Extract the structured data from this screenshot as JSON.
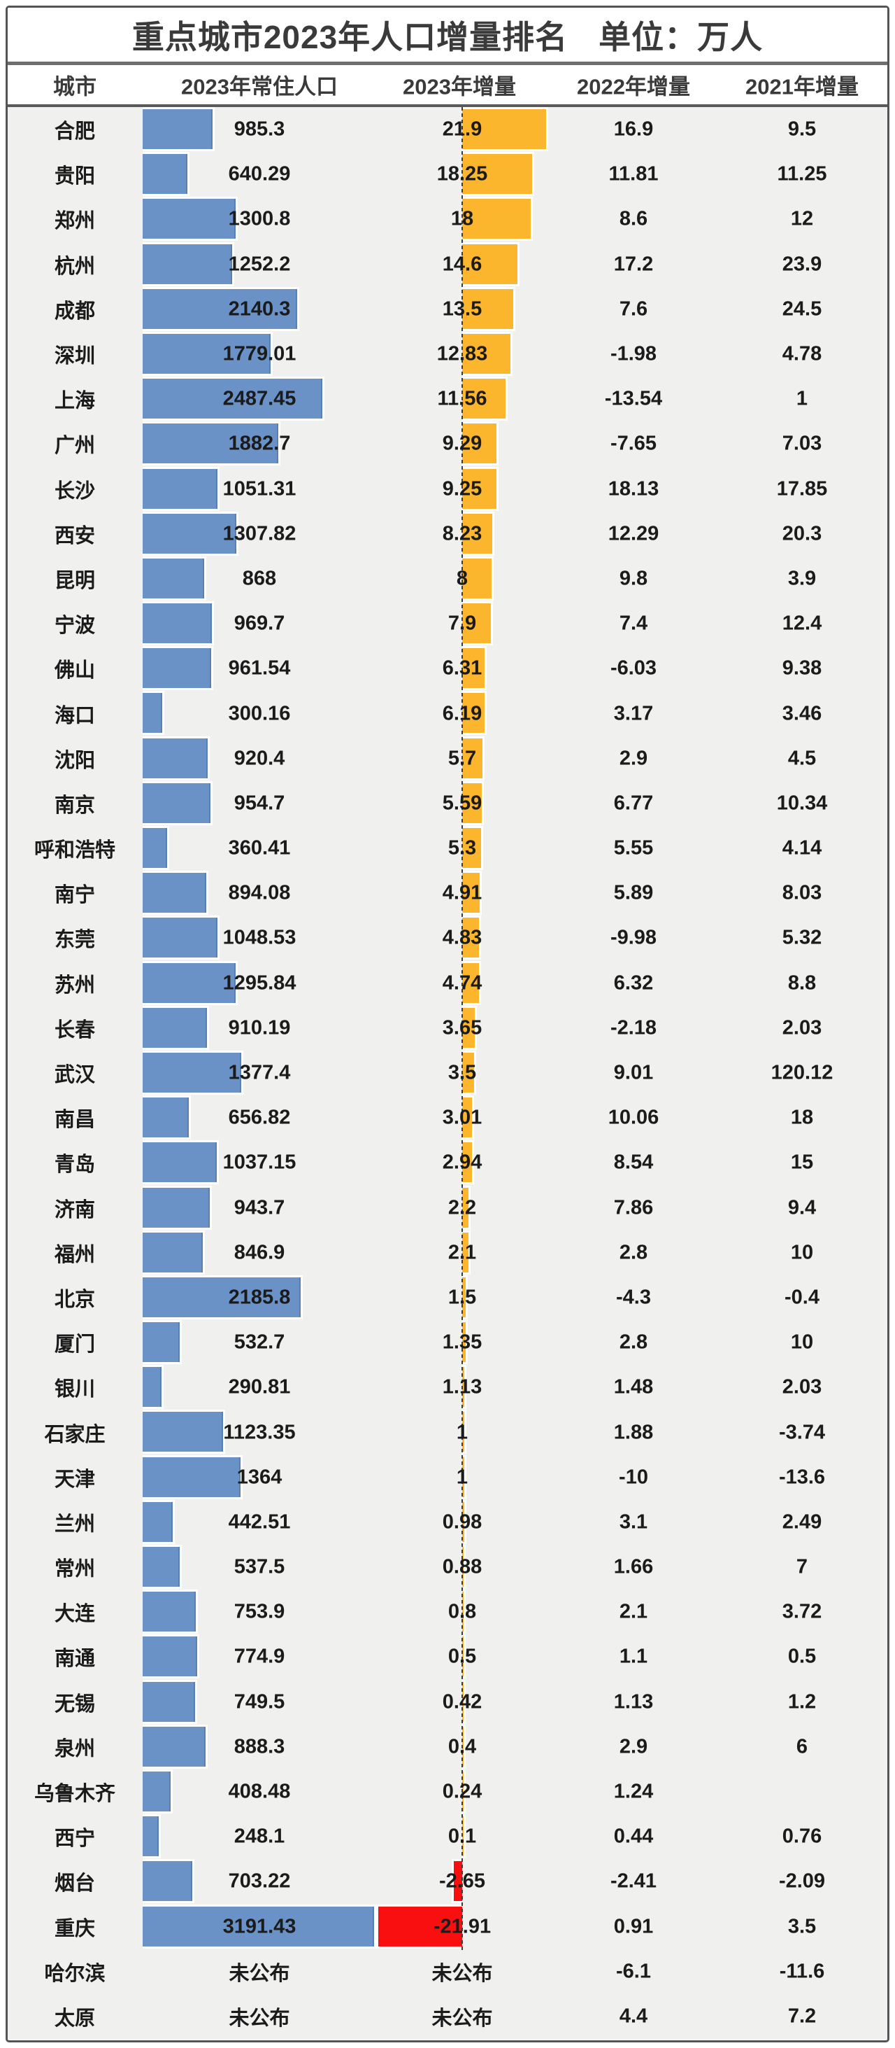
{
  "header": {
    "title_main": "重点城市2023年人口增量排名",
    "title_unit": "单位：万人",
    "columns": [
      "城市",
      "2023年常住人口",
      "2023年增量",
      "2022年增量",
      "2021年增量"
    ]
  },
  "colors": {
    "population_bar": "#6a92c6",
    "increase_bar_positive": "#fcb62e",
    "increase_bar_negative": "#f90f0f",
    "body_background": "#f0f0ef",
    "text": "#1b1b1b"
  },
  "chart_data": {
    "type": "bar",
    "orientation": "horizontal",
    "title": "重点城市2023年人口增量排名",
    "unit": "万人",
    "columns": [
      "城市",
      "2023年常住人口",
      "2023年增量",
      "2022年增量",
      "2021年增量"
    ],
    "not_published_label": "未公布",
    "axis": {
      "population_bar_max": 3191.43,
      "increase_bar_max": 21.91,
      "increase_baseline": 0
    },
    "rows": [
      {
        "city": "合肥",
        "pop": 985.3,
        "inc2023": 21.9,
        "inc2022": 16.9,
        "inc2021": 9.5
      },
      {
        "city": "贵阳",
        "pop": 640.29,
        "inc2023": 18.25,
        "inc2022": 11.81,
        "inc2021": 11.25
      },
      {
        "city": "郑州",
        "pop": 1300.8,
        "inc2023": 18,
        "inc2022": 8.6,
        "inc2021": 12
      },
      {
        "city": "杭州",
        "pop": 1252.2,
        "inc2023": 14.6,
        "inc2022": 17.2,
        "inc2021": 23.9
      },
      {
        "city": "成都",
        "pop": 2140.3,
        "inc2023": 13.5,
        "inc2022": 7.6,
        "inc2021": 24.5
      },
      {
        "city": "深圳",
        "pop": 1779.01,
        "inc2023": 12.83,
        "inc2022": -1.98,
        "inc2021": 4.78
      },
      {
        "city": "上海",
        "pop": 2487.45,
        "inc2023": 11.56,
        "inc2022": -13.54,
        "inc2021": 1
      },
      {
        "city": "广州",
        "pop": 1882.7,
        "inc2023": 9.29,
        "inc2022": -7.65,
        "inc2021": 7.03
      },
      {
        "city": "长沙",
        "pop": 1051.31,
        "inc2023": 9.25,
        "inc2022": 18.13,
        "inc2021": 17.85
      },
      {
        "city": "西安",
        "pop": 1307.82,
        "inc2023": 8.23,
        "inc2022": 12.29,
        "inc2021": 20.3
      },
      {
        "city": "昆明",
        "pop": 868,
        "inc2023": 8,
        "inc2022": 9.8,
        "inc2021": 3.9
      },
      {
        "city": "宁波",
        "pop": 969.7,
        "inc2023": 7.9,
        "inc2022": 7.4,
        "inc2021": 12.4
      },
      {
        "city": "佛山",
        "pop": 961.54,
        "inc2023": 6.31,
        "inc2022": -6.03,
        "inc2021": 9.38
      },
      {
        "city": "海口",
        "pop": 300.16,
        "inc2023": 6.19,
        "inc2022": 3.17,
        "inc2021": 3.46
      },
      {
        "city": "沈阳",
        "pop": 920.4,
        "inc2023": 5.7,
        "inc2022": 2.9,
        "inc2021": 4.5
      },
      {
        "city": "南京",
        "pop": 954.7,
        "inc2023": 5.59,
        "inc2022": 6.77,
        "inc2021": 10.34
      },
      {
        "city": "呼和浩特",
        "pop": 360.41,
        "inc2023": 5.3,
        "inc2022": 5.55,
        "inc2021": 4.14
      },
      {
        "city": "南宁",
        "pop": 894.08,
        "inc2023": 4.91,
        "inc2022": 5.89,
        "inc2021": 8.03
      },
      {
        "city": "东莞",
        "pop": 1048.53,
        "inc2023": 4.83,
        "inc2022": -9.98,
        "inc2021": 5.32
      },
      {
        "city": "苏州",
        "pop": 1295.84,
        "inc2023": 4.74,
        "inc2022": 6.32,
        "inc2021": 8.8
      },
      {
        "city": "长春",
        "pop": 910.19,
        "inc2023": 3.65,
        "inc2022": -2.18,
        "inc2021": 2.03
      },
      {
        "city": "武汉",
        "pop": 1377.4,
        "inc2023": 3.5,
        "inc2022": 9.01,
        "inc2021": 120.12
      },
      {
        "city": "南昌",
        "pop": 656.82,
        "inc2023": 3.01,
        "inc2022": 10.06,
        "inc2021": 18
      },
      {
        "city": "青岛",
        "pop": 1037.15,
        "inc2023": 2.94,
        "inc2022": 8.54,
        "inc2021": 15
      },
      {
        "city": "济南",
        "pop": 943.7,
        "inc2023": 2.2,
        "inc2022": 7.86,
        "inc2021": 9.4
      },
      {
        "city": "福州",
        "pop": 846.9,
        "inc2023": 2.1,
        "inc2022": 2.8,
        "inc2021": 10
      },
      {
        "city": "北京",
        "pop": 2185.8,
        "inc2023": 1.5,
        "inc2022": -4.3,
        "inc2021": -0.4
      },
      {
        "city": "厦门",
        "pop": 532.7,
        "inc2023": 1.35,
        "inc2022": 2.8,
        "inc2021": 10
      },
      {
        "city": "银川",
        "pop": 290.81,
        "inc2023": 1.13,
        "inc2022": 1.48,
        "inc2021": 2.03
      },
      {
        "city": "石家庄",
        "pop": 1123.35,
        "inc2023": 1,
        "inc2022": 1.88,
        "inc2021": -3.74
      },
      {
        "city": "天津",
        "pop": 1364,
        "inc2023": 1,
        "inc2022": -10,
        "inc2021": -13.6
      },
      {
        "city": "兰州",
        "pop": 442.51,
        "inc2023": 0.98,
        "inc2022": 3.1,
        "inc2021": 2.49
      },
      {
        "city": "常州",
        "pop": 537.5,
        "inc2023": 0.88,
        "inc2022": 1.66,
        "inc2021": 7
      },
      {
        "city": "大连",
        "pop": 753.9,
        "inc2023": 0.8,
        "inc2022": 2.1,
        "inc2021": 3.72
      },
      {
        "city": "南通",
        "pop": 774.9,
        "inc2023": 0.5,
        "inc2022": 1.1,
        "inc2021": 0.5
      },
      {
        "city": "无锡",
        "pop": 749.5,
        "inc2023": 0.42,
        "inc2022": 1.13,
        "inc2021": 1.2
      },
      {
        "city": "泉州",
        "pop": 888.3,
        "inc2023": 0.4,
        "inc2022": 2.9,
        "inc2021": 6
      },
      {
        "city": "乌鲁木齐",
        "pop": 408.48,
        "inc2023": 0.24,
        "inc2022": 1.24,
        "inc2021": null
      },
      {
        "city": "西宁",
        "pop": 248.1,
        "inc2023": 0.1,
        "inc2022": 0.44,
        "inc2021": 0.76
      },
      {
        "city": "烟台",
        "pop": 703.22,
        "inc2023": -2.65,
        "inc2022": -2.41,
        "inc2021": -2.09
      },
      {
        "city": "重庆",
        "pop": 3191.43,
        "inc2023": -21.91,
        "inc2022": 0.91,
        "inc2021": 3.5
      },
      {
        "city": "哈尔滨",
        "pop": "未公布",
        "inc2023": "未公布",
        "inc2022": -6.1,
        "inc2021": -11.6
      },
      {
        "city": "太原",
        "pop": "未公布",
        "inc2023": "未公布",
        "inc2022": 4.4,
        "inc2021": 7.2
      }
    ]
  }
}
